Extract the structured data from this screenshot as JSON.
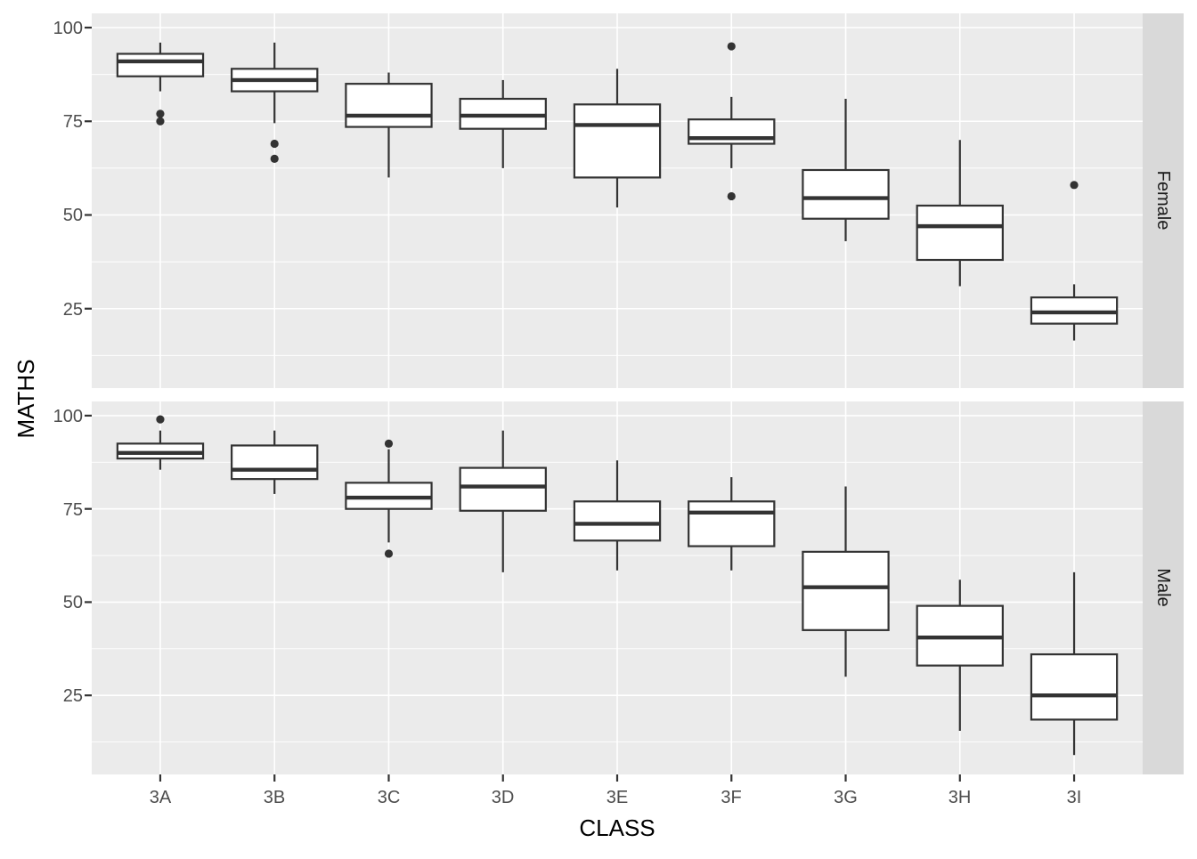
{
  "chart_data": {
    "type": "boxplot",
    "title": "",
    "xlabel": "CLASS",
    "ylabel": "MATHS",
    "categories": [
      "3A",
      "3B",
      "3C",
      "3D",
      "3E",
      "3F",
      "3G",
      "3H",
      "3I"
    ],
    "facets": [
      "Female",
      "Male"
    ],
    "facet_position": "right-strip",
    "y_ticks": [
      100,
      75,
      50,
      25
    ],
    "y_tick_labels": [
      "100",
      "75",
      "50",
      "25"
    ],
    "y_minor_gridlines": [
      87.5,
      62.5,
      37.5,
      12.5
    ],
    "ylim": [
      3.8,
      103.8
    ],
    "grid": "white major and minor gridlines on grey panel",
    "legend": "none",
    "series": [
      {
        "facet": "Female",
        "boxes": [
          {
            "category": "3A",
            "whisker_low": 83,
            "q1": 87,
            "median": 91,
            "q3": 93,
            "whisker_high": 96,
            "outliers": [
              77,
              75
            ]
          },
          {
            "category": "3B",
            "whisker_low": 74.5,
            "q1": 83,
            "median": 86,
            "q3": 89,
            "whisker_high": 96,
            "outliers": [
              69,
              65
            ]
          },
          {
            "category": "3C",
            "whisker_low": 60,
            "q1": 73.5,
            "median": 76.5,
            "q3": 85,
            "whisker_high": 88,
            "outliers": []
          },
          {
            "category": "3D",
            "whisker_low": 62.5,
            "q1": 73,
            "median": 76.5,
            "q3": 81,
            "whisker_high": 86,
            "outliers": []
          },
          {
            "category": "3E",
            "whisker_low": 52,
            "q1": 60,
            "median": 74,
            "q3": 79.5,
            "whisker_high": 89,
            "outliers": []
          },
          {
            "category": "3F",
            "whisker_low": 62.5,
            "q1": 69,
            "median": 70.5,
            "q3": 75.5,
            "whisker_high": 81.5,
            "outliers": [
              95,
              55
            ]
          },
          {
            "category": "3G",
            "whisker_low": 43,
            "q1": 49,
            "median": 54.5,
            "q3": 62,
            "whisker_high": 81,
            "outliers": []
          },
          {
            "category": "3H",
            "whisker_low": 31,
            "q1": 38,
            "median": 47,
            "q3": 52.5,
            "whisker_high": 70,
            "outliers": []
          },
          {
            "category": "3I",
            "whisker_low": 16.5,
            "q1": 21,
            "median": 24,
            "q3": 28,
            "whisker_high": 31.5,
            "outliers": [
              58
            ]
          }
        ]
      },
      {
        "facet": "Male",
        "boxes": [
          {
            "category": "3A",
            "whisker_low": 85.5,
            "q1": 88.5,
            "median": 90,
            "q3": 92.5,
            "whisker_high": 96,
            "outliers": [
              99
            ]
          },
          {
            "category": "3B",
            "whisker_low": 79,
            "q1": 83,
            "median": 85.5,
            "q3": 92,
            "whisker_high": 96,
            "outliers": []
          },
          {
            "category": "3C",
            "whisker_low": 66,
            "q1": 75,
            "median": 78,
            "q3": 82,
            "whisker_high": 91,
            "outliers": [
              92.5,
              63
            ]
          },
          {
            "category": "3D",
            "whisker_low": 58,
            "q1": 74.5,
            "median": 81,
            "q3": 86,
            "whisker_high": 96,
            "outliers": []
          },
          {
            "category": "3E",
            "whisker_low": 58.5,
            "q1": 66.5,
            "median": 71,
            "q3": 77,
            "whisker_high": 88,
            "outliers": []
          },
          {
            "category": "3F",
            "whisker_low": 58.5,
            "q1": 65,
            "median": 74,
            "q3": 77,
            "whisker_high": 83.5,
            "outliers": []
          },
          {
            "category": "3G",
            "whisker_low": 30,
            "q1": 42.5,
            "median": 54,
            "q3": 63.5,
            "whisker_high": 81,
            "outliers": []
          },
          {
            "category": "3H",
            "whisker_low": 15.5,
            "q1": 33,
            "median": 40.5,
            "q3": 49,
            "whisker_high": 56,
            "outliers": []
          },
          {
            "category": "3I",
            "whisker_low": 9,
            "q1": 18.5,
            "median": 25,
            "q3": 36,
            "whisker_high": 58,
            "outliers": []
          }
        ]
      }
    ]
  },
  "style": {
    "page_bg": "#FFFFFF",
    "panel_bg": "#EBEBEB",
    "strip_bg": "#D9D9D9",
    "grid_color": "#FFFFFF",
    "box_fill": "#FFFFFF",
    "box_stroke": "#333333",
    "outlier_color": "#333333",
    "tick_mark_color": "#333333",
    "tick_label_color": "#4D4D4D",
    "axis_title_color": "#000000",
    "strip_text_color": "#1A1A1A"
  }
}
